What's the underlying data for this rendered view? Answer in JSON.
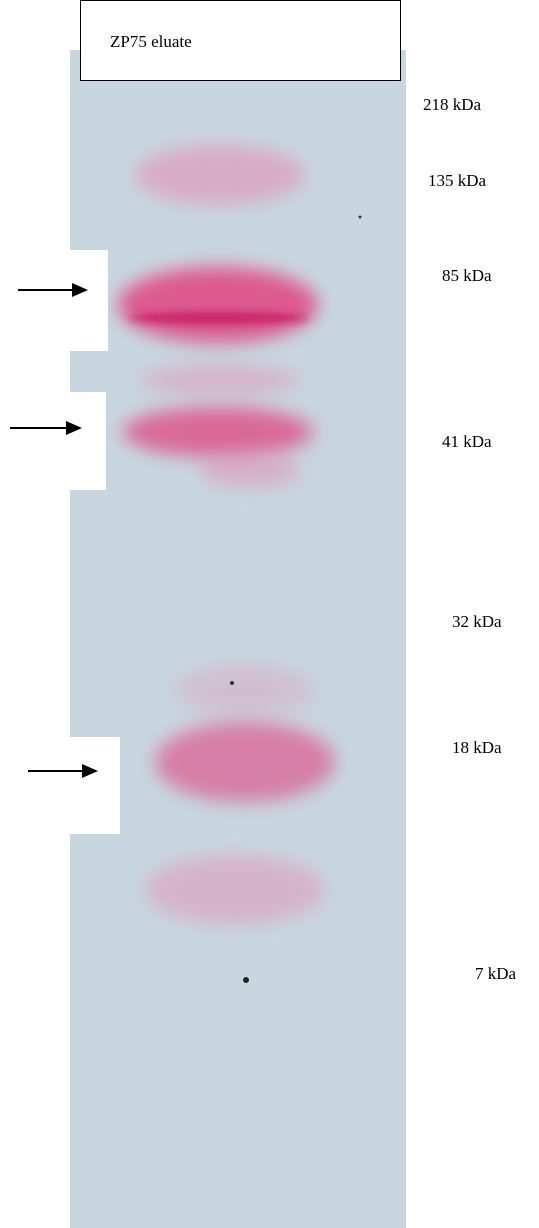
{
  "lane_label": "ZP75 eluate",
  "markers": [
    "218 kDa",
    "135 kDa",
    "85 kDa",
    "41 kDa",
    "32 kDa",
    "18 kDa",
    "7 kDa"
  ]
}
